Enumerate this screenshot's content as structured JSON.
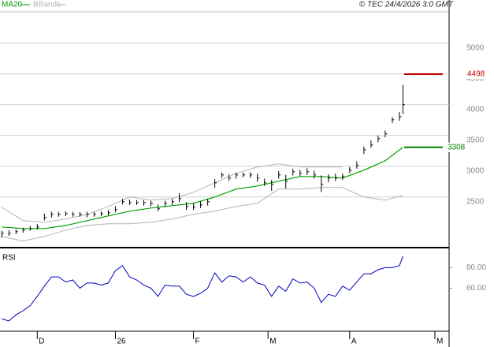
{
  "header": {
    "copyright": "© TEC 24/4/2026 3:0 GMT"
  },
  "chart_data": [
    {
      "type": "ohlc",
      "bars": {
        "color": "#000000",
        "x": [
          0,
          2,
          4,
          6,
          8,
          10,
          12,
          14,
          16,
          18,
          20,
          22,
          24,
          26,
          28,
          30,
          32,
          34,
          36,
          38,
          40,
          42,
          44,
          46,
          48,
          50,
          52,
          54,
          56,
          58,
          60,
          62,
          64,
          66,
          68,
          70,
          72,
          74,
          76,
          78,
          80,
          82,
          84,
          86,
          88,
          90,
          92,
          94,
          96,
          98,
          100,
          102,
          104,
          106,
          108,
          110,
          112,
          113
        ],
        "high": [
          1950,
          1960,
          1975,
          2000,
          2030,
          2060,
          2230,
          2260,
          2260,
          2270,
          2260,
          2255,
          2260,
          2255,
          2270,
          2290,
          2350,
          2470,
          2460,
          2450,
          2450,
          2440,
          2380,
          2440,
          2470,
          2560,
          2420,
          2400,
          2430,
          2470,
          2790,
          2900,
          2870,
          2900,
          2900,
          2900,
          2880,
          2800,
          2780,
          2920,
          2860,
          2960,
          2940,
          2970,
          2930,
          2850,
          2870,
          2880,
          2880,
          2990,
          3080,
          3320,
          3420,
          3500,
          3580,
          3800,
          3880,
          4321
        ],
        "low": [
          1840,
          1870,
          1900,
          1920,
          1950,
          1970,
          2120,
          2170,
          2180,
          2190,
          2180,
          2180,
          2170,
          2180,
          2190,
          2200,
          2250,
          2380,
          2370,
          2370,
          2360,
          2350,
          2270,
          2340,
          2370,
          2420,
          2290,
          2290,
          2320,
          2360,
          2650,
          2810,
          2760,
          2800,
          2820,
          2810,
          2750,
          2680,
          2600,
          2800,
          2640,
          2850,
          2840,
          2860,
          2800,
          2580,
          2740,
          2760,
          2780,
          2890,
          2960,
          3200,
          3300,
          3390,
          3470,
          3700,
          3740,
          3850
        ],
        "close": [
          1910,
          1910,
          1936,
          1962,
          1987,
          2013,
          2167,
          2218,
          2218,
          2231,
          2218,
          2218,
          2218,
          2218,
          2231,
          2244,
          2295,
          2423,
          2410,
          2410,
          2410,
          2397,
          2308,
          2397,
          2423,
          2474,
          2346,
          2333,
          2372,
          2423,
          2731,
          2859,
          2808,
          2859,
          2859,
          2859,
          2808,
          2731,
          2705,
          2859,
          2756,
          2910,
          2885,
          2910,
          2859,
          2705,
          2808,
          2808,
          2833,
          2936,
          3013,
          3269,
          3346,
          3449,
          3526,
          3756,
          3808,
          4000
        ]
      },
      "lines": [
        {
          "name": "MA20",
          "color": "#00a000",
          "x": [
            0,
            6,
            12,
            18,
            24,
            30,
            36,
            42,
            48,
            54,
            60,
            66,
            72,
            78,
            84,
            90,
            96,
            102,
            108,
            113
          ],
          "values": [
            2013,
            1987,
            1987,
            2038,
            2115,
            2192,
            2269,
            2321,
            2359,
            2397,
            2500,
            2628,
            2679,
            2756,
            2833,
            2833,
            2808,
            2936,
            3090,
            3308
          ]
        },
        {
          "name": "BBands",
          "color": "#b4b4b4",
          "x": [
            0,
            6,
            12,
            18,
            24,
            30,
            36,
            42,
            48,
            54,
            60,
            66,
            72,
            78,
            84,
            90,
            96,
            102,
            108,
            113
          ],
          "upper": [
            2333,
            2115,
            2090,
            2141,
            2218,
            2346,
            2500,
            2449,
            2474,
            2577,
            2731,
            2885,
            2987,
            3038,
            2987,
            2987,
            2987,
            null,
            null,
            null
          ],
          "lower": [
            1859,
            1782,
            1859,
            1962,
            2038,
            2064,
            2064,
            2090,
            2141,
            2218,
            2269,
            2346,
            2397,
            2628,
            2628,
            2654,
            2654,
            2500,
            2449,
            2526
          ]
        }
      ],
      "levels": [
        {
          "value": 4498,
          "color": "#c00000"
        },
        {
          "value": 3308,
          "color": "#008000"
        }
      ],
      "xlim": [
        -0.5,
        126
      ],
      "ylim": [
        1690,
        5510
      ],
      "yticks": [
        2500,
        3000,
        3500,
        4000,
        4500,
        5000
      ],
      "grid": true
    },
    {
      "type": "line",
      "title": "RSI",
      "color": "#0000c0",
      "x": [
        0,
        2,
        4,
        6,
        8,
        10,
        12,
        14,
        16,
        18,
        20,
        22,
        24,
        26,
        28,
        30,
        32,
        34,
        36,
        38,
        40,
        42,
        44,
        46,
        48,
        50,
        52,
        54,
        56,
        58,
        60,
        62,
        64,
        66,
        68,
        70,
        72,
        74,
        76,
        78,
        80,
        82,
        84,
        86,
        88,
        90,
        92,
        94,
        96,
        98,
        100,
        102,
        104,
        106,
        108,
        110,
        112,
        113
      ],
      "values": [
        30,
        28,
        34,
        38,
        43,
        52,
        62,
        71,
        71,
        66,
        68,
        60,
        65,
        65,
        63,
        65,
        77,
        82,
        71,
        68,
        63,
        60,
        52,
        63,
        62,
        62,
        54,
        52,
        55,
        60,
        75,
        66,
        72,
        71,
        66,
        71,
        65,
        63,
        52,
        62,
        57,
        69,
        65,
        66,
        60,
        46,
        54,
        52,
        62,
        58,
        66,
        74,
        74,
        78,
        80,
        80,
        82,
        91
      ],
      "xlim": [
        -0.5,
        126
      ],
      "ylim": [
        18,
        98
      ],
      "yticks": [
        {
          "value": 60,
          "label": "60.00"
        },
        {
          "value": 80,
          "label": "80.00"
        }
      ],
      "xticks": [
        {
          "value": 10,
          "label": "D"
        },
        {
          "value": 32,
          "label": "26"
        },
        {
          "value": 54,
          "label": "F"
        },
        {
          "value": 75,
          "label": "M"
        },
        {
          "value": 98,
          "label": "A"
        },
        {
          "value": 122,
          "label": "M"
        }
      ]
    }
  ]
}
